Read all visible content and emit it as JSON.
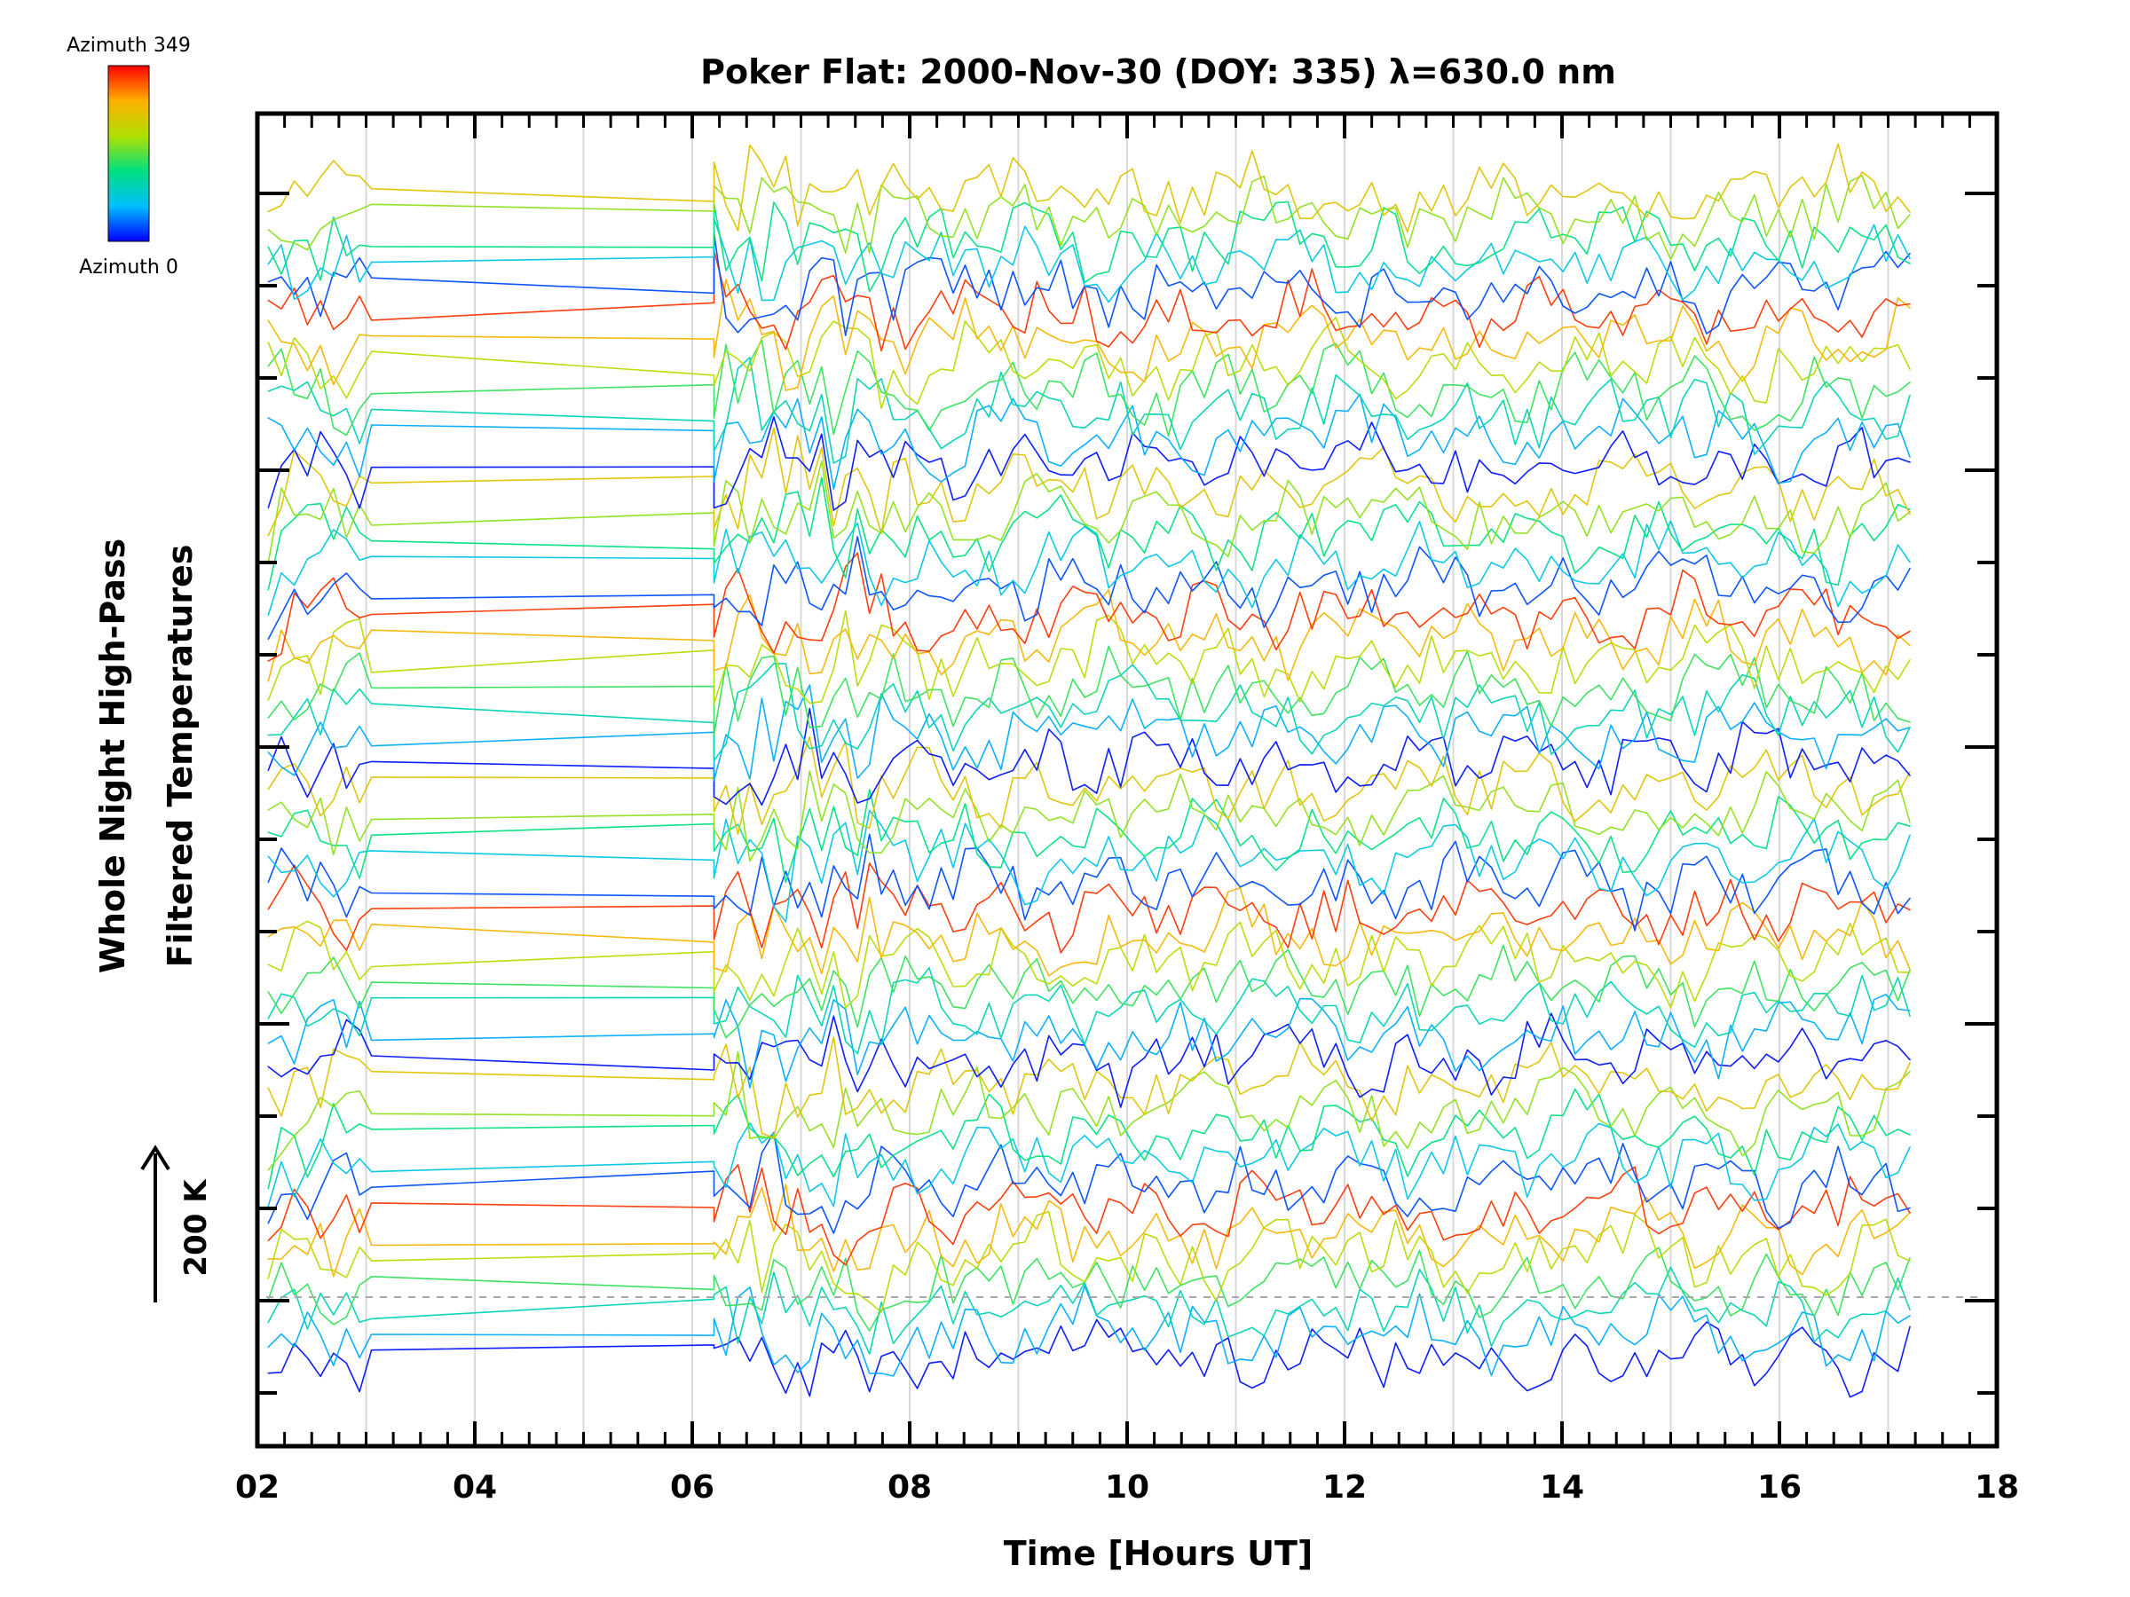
{
  "chart_data": {
    "type": "line",
    "title": "Poker Flat: 2000-Nov-30 (DOY: 335) λ=630.0 nm",
    "xlabel": "Time [Hours UT]",
    "ylabel_line1": "Whole Night High-Pass",
    "ylabel_line2": "Filtered Temperatures",
    "xlim": [
      2,
      18
    ],
    "x_ticks": [
      "02",
      "04",
      "06",
      "08",
      "10",
      "12",
      "14",
      "16",
      "18"
    ],
    "x_minor_step_hours": 1,
    "grid": "vertical at each hour",
    "scale_bar": {
      "label": "200 K",
      "value_k": 200
    },
    "legend": {
      "type": "colorbar",
      "placement": "top-left",
      "top_label": "Azimuth 349",
      "bottom_label": "Azimuth 0",
      "colors": [
        "#0000ff",
        "#00bfff",
        "#00e080",
        "#b0e000",
        "#ffb000",
        "#ff0000"
      ]
    },
    "series_count": 48,
    "time_coverage": {
      "early_segment": [
        2.1,
        3.05
      ],
      "data_gap": [
        3.05,
        6.2
      ],
      "main_segment": [
        6.2,
        17.3
      ]
    },
    "reference_line": "dashed baseline at lowest trace offset"
  }
}
